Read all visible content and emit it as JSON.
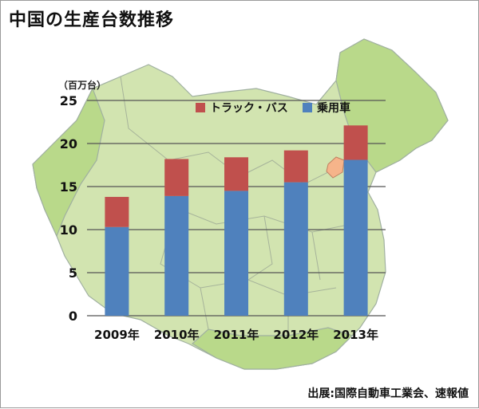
{
  "title": "中国の生産台数推移",
  "unit_label": "（百万台）",
  "source": "出展:国際自動車工業会、速報値",
  "colors": {
    "passenger": "#4f81bd",
    "truck_bus": "#c0504d",
    "map_fill": "#d2e4b0",
    "map_fill_dark": "#b9d98a",
    "map_border": "#a0b0a0",
    "beijing": "#f6b48a",
    "grid": "#555555"
  },
  "chart_data": {
    "type": "bar",
    "stacked": true,
    "title": "中国の生産台数推移",
    "ylabel": "（百万台）",
    "xlabel": "",
    "ylim": [
      0,
      25
    ],
    "yticks": [
      0,
      5,
      10,
      15,
      20,
      25
    ],
    "grid": true,
    "legend_position": "top",
    "categories": [
      "2009年",
      "2010年",
      "2011年",
      "2012年",
      "2013年"
    ],
    "series": [
      {
        "name": "乗用車",
        "color": "#4f81bd",
        "values": [
          10.3,
          13.9,
          14.5,
          15.5,
          18.1
        ]
      },
      {
        "name": "トラック・バス",
        "color": "#c0504d",
        "values": [
          3.5,
          4.3,
          3.9,
          3.7,
          4.0
        ]
      }
    ]
  }
}
